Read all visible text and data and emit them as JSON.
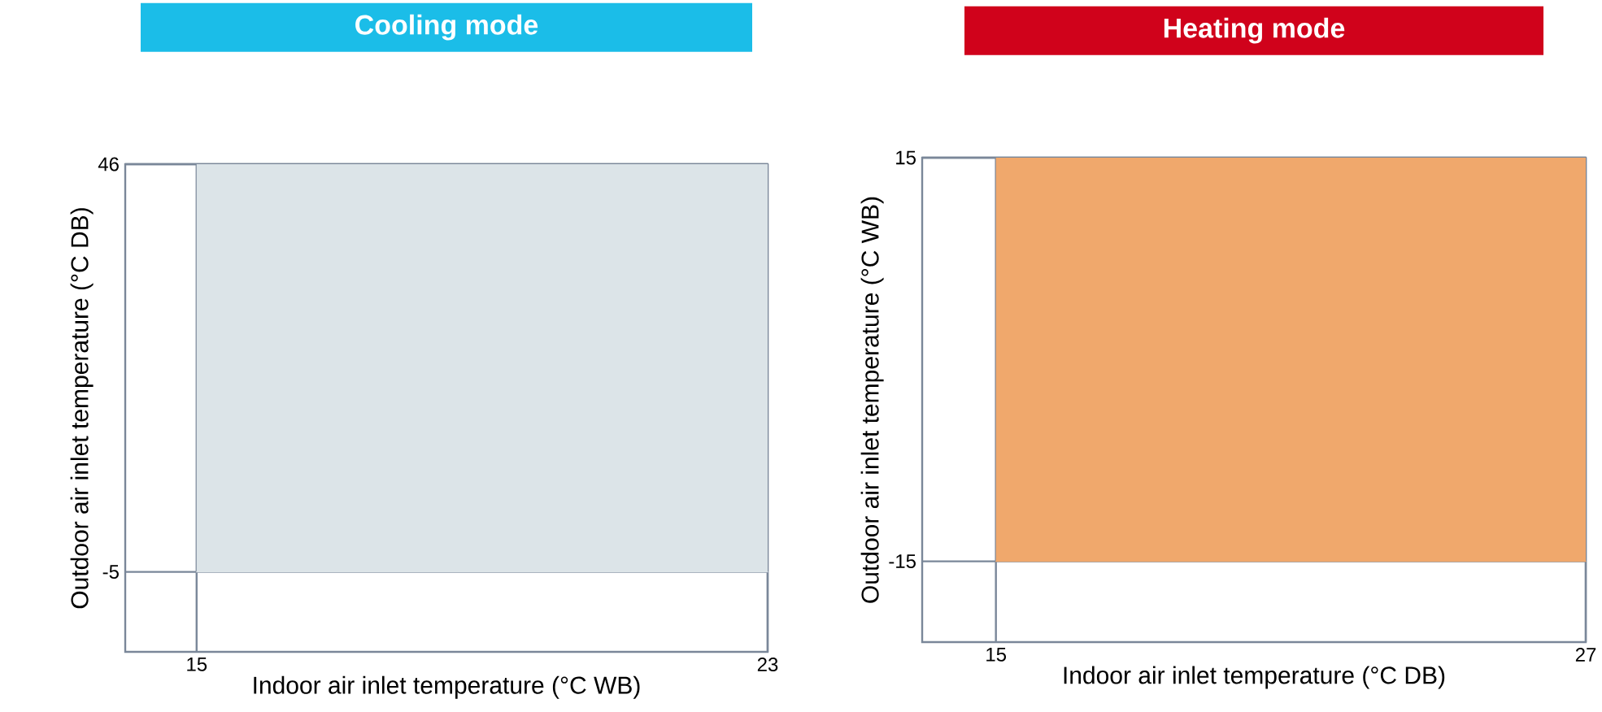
{
  "chart_data": [
    {
      "type": "line",
      "title": "Cooling mode",
      "xlabel": "Indoor air inlet temperature (°C WB)",
      "ylabel": "Outdoor air inlet temperature (°C DB)",
      "x": [
        15,
        23
      ],
      "series": [
        {
          "color": "#dce4e8",
          "values": [
            -5,
            -5
          ],
          "lower": [
            -5,
            -5
          ],
          "upper": [
            46,
            46
          ]
        }
      ],
      "xlim": [
        14,
        23
      ],
      "ylim": [
        -15,
        46
      ],
      "xticks": [
        15,
        23
      ],
      "yticks": [
        -5,
        46
      ],
      "grid": true
    },
    {
      "type": "line",
      "title": "Heating mode",
      "xlabel": "Indoor air inlet temperature (°C DB)",
      "ylabel": "Outdoor air inlet temperature (°C WB)",
      "x": [
        15,
        27
      ],
      "series": [
        {
          "color": "#f0a86c",
          "values": [
            -15,
            -15
          ],
          "lower": [
            -15,
            -15
          ],
          "upper": [
            15,
            15
          ]
        }
      ],
      "xlim": [
        13.5,
        27
      ],
      "ylim": [
        -21,
        15
      ],
      "xticks": [
        15,
        27
      ],
      "yticks": [
        -15,
        15
      ],
      "grid": true
    }
  ]
}
